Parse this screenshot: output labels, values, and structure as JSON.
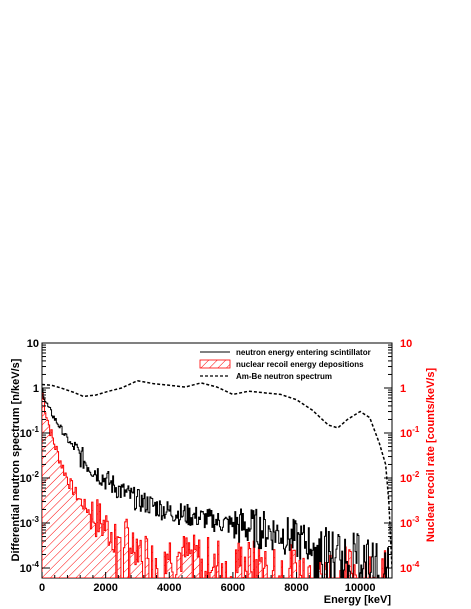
{
  "chart_data": {
    "type": "line",
    "title": "",
    "xlabel": "Energy [keV]",
    "ylabel": "Differential neutron spectrum [n/keV/s]",
    "y2label": "Nuclear recoil rate [counts/keV/s]",
    "xlim": [
      0,
      11000
    ],
    "ylim": [
      6e-05,
      10
    ],
    "y2lim": [
      6e-05,
      10
    ],
    "yscale": "log",
    "grid": false,
    "legend_position": "top-right",
    "x_ticks": [
      0,
      2000,
      4000,
      6000,
      8000,
      10000
    ],
    "x_tick_labels": [
      "0",
      "2000",
      "4000",
      "6000",
      "8000",
      "10000"
    ],
    "y_ticks": [
      0.0001,
      0.001,
      0.01,
      0.1,
      1,
      10
    ],
    "y_tick_labels": [
      {
        "base": "10",
        "exp": "-4"
      },
      {
        "base": "10",
        "exp": "-3"
      },
      {
        "base": "10",
        "exp": "-2"
      },
      {
        "base": "10",
        "exp": "-1"
      },
      {
        "base": "1",
        "exp": ""
      },
      {
        "base": "10",
        "exp": ""
      }
    ],
    "colors": {
      "black": "#000000",
      "red": "#ff0000",
      "frame": "#000000"
    },
    "series": [
      {
        "name": "neutron energy entering scintillator",
        "style": "solid",
        "color": "#000000",
        "axis": "left",
        "x": [
          0,
          100,
          200,
          400,
          600,
          800,
          1000,
          1200,
          1500,
          1800,
          2000,
          2500,
          3000,
          3500,
          4000,
          5000,
          6000,
          7000,
          7500,
          8000,
          8500,
          9000,
          9500,
          10000,
          10500,
          10900
        ],
        "y": [
          0.9,
          0.5,
          0.35,
          0.2,
          0.12,
          0.07,
          0.045,
          0.03,
          0.018,
          0.012,
          0.009,
          0.005,
          0.0032,
          0.0024,
          0.0018,
          0.0013,
          0.0009,
          0.0007,
          0.0006,
          0.0004,
          0.00035,
          0.0003,
          0.00025,
          0.0002,
          0.00015,
          0.0001
        ]
      },
      {
        "name": "nuclear recoil energy depositions",
        "style": "hatched",
        "color": "#ff0000",
        "axis": "right",
        "x": [
          0,
          100,
          200,
          300,
          400,
          600,
          800,
          1000,
          1200,
          1500,
          1800,
          2000,
          2500,
          3000,
          4000,
          5000,
          6000,
          7000,
          8000,
          9000,
          10000,
          10800
        ],
        "y": [
          0.8,
          0.3,
          0.15,
          0.08,
          0.05,
          0.02,
          0.009,
          0.005,
          0.003,
          0.0017,
          0.0011,
          0.0008,
          0.0005,
          0.00035,
          0.00022,
          0.00017,
          0.00015,
          0.00013,
          0.00011,
          0.0001,
          0.0001,
          0.0001
        ]
      },
      {
        "name": "Am-Be neutron spectrum",
        "style": "dashed",
        "color": "#000000",
        "axis": "left",
        "x": [
          0,
          300,
          600,
          1000,
          1300,
          1700,
          2100,
          2500,
          3000,
          3500,
          4000,
          4500,
          5000,
          5500,
          6000,
          6500,
          7000,
          7500,
          8000,
          8500,
          9000,
          9300,
          9600,
          10000,
          10300,
          10600,
          10800,
          10900,
          11000
        ],
        "y": [
          1.2,
          1.15,
          1.0,
          0.8,
          0.65,
          0.7,
          0.85,
          1.0,
          1.45,
          1.25,
          1.15,
          1.05,
          1.3,
          1.05,
          0.72,
          0.85,
          0.78,
          0.72,
          0.55,
          0.32,
          0.15,
          0.13,
          0.2,
          0.3,
          0.22,
          0.06,
          0.02,
          0.003,
          0.0001
        ]
      }
    ]
  }
}
